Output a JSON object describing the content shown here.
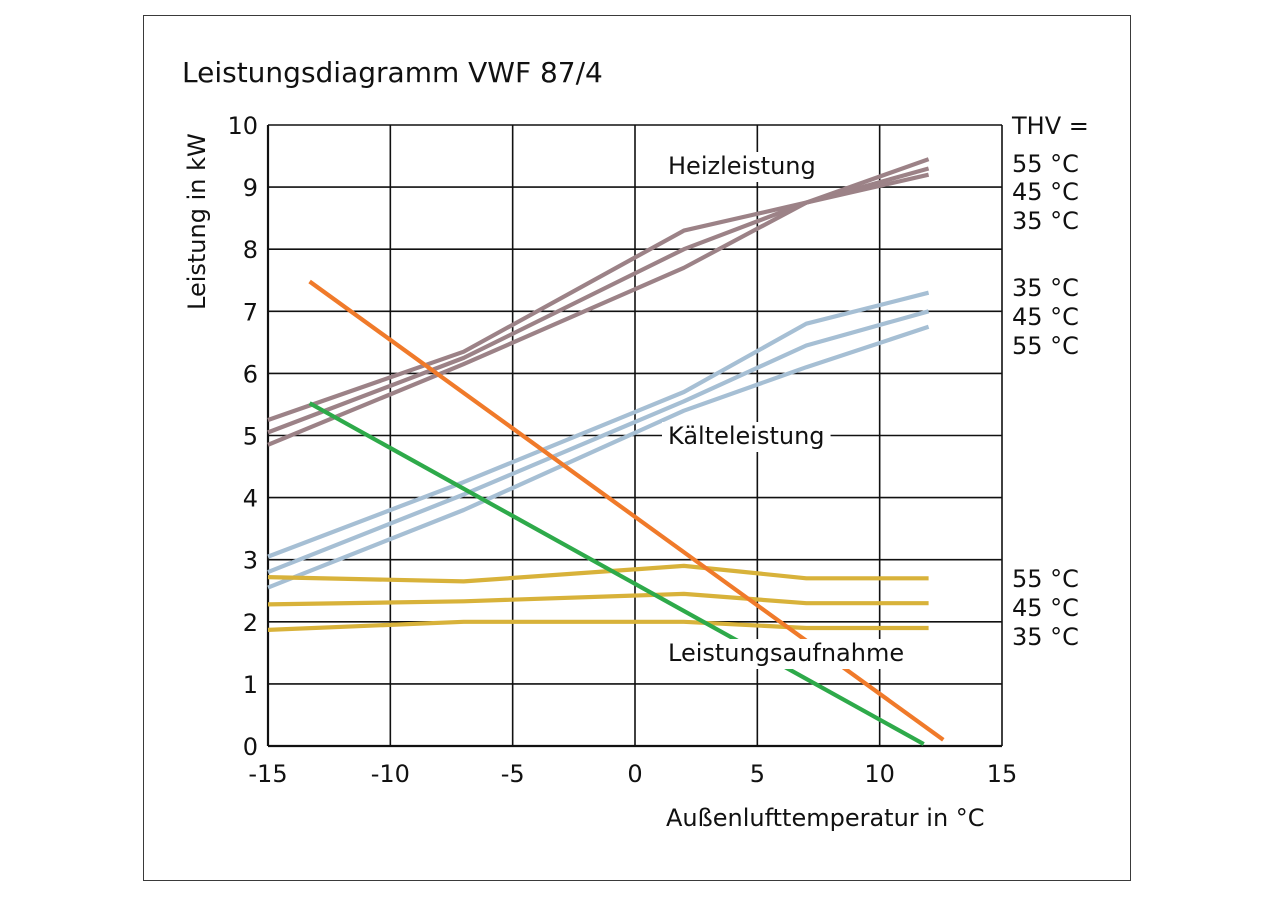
{
  "chart_data": {
    "type": "line",
    "title": "Leistungsdiagramm VWF 87/4",
    "xlabel": "Außenlufttemperatur in °C",
    "ylabel": "Leistung in kW",
    "xlim": [
      -15,
      15
    ],
    "ylim": [
      0,
      10
    ],
    "x_ticks": [
      "-15",
      "-10",
      "-5",
      "0",
      "5",
      "10",
      "15"
    ],
    "y_ticks": [
      "0",
      "1",
      "2",
      "3",
      "4",
      "5",
      "6",
      "7",
      "8",
      "9",
      "10"
    ],
    "grid": true,
    "legend_header": "THV =",
    "annotations": {
      "heat": "Heizleistung",
      "cool": "Kälteleistung",
      "power": "Leistungsaufnahme"
    },
    "right_labels": {
      "heat": [
        "55 °C",
        "45 °C",
        "35 °C"
      ],
      "cool": [
        "35 °C",
        "45 °C",
        "55 °C"
      ],
      "power": [
        "55 °C",
        "45 °C",
        "35 °C"
      ]
    },
    "colors": {
      "heat": "#9c8287",
      "cool": "#a6bfd4",
      "power": "#d8b23a",
      "orange": "#f07a2a",
      "green": "#2eaa4a"
    },
    "series": [
      {
        "group": "heat",
        "x": [
          -15,
          -7,
          2,
          7,
          12
        ],
        "y": [
          5.25,
          6.35,
          8.3,
          8.75,
          9.45
        ]
      },
      {
        "group": "heat",
        "x": [
          -15,
          -7,
          2,
          7,
          12
        ],
        "y": [
          5.05,
          6.25,
          8.0,
          8.75,
          9.3
        ]
      },
      {
        "group": "heat",
        "x": [
          -15,
          -7,
          2,
          7,
          12
        ],
        "y": [
          4.85,
          6.15,
          7.7,
          8.75,
          9.2
        ]
      },
      {
        "group": "cool",
        "x": [
          -15,
          -7,
          2,
          7,
          12
        ],
        "y": [
          3.05,
          4.25,
          5.7,
          6.8,
          7.3
        ]
      },
      {
        "group": "cool",
        "x": [
          -15,
          -7,
          2,
          7,
          12
        ],
        "y": [
          2.8,
          4.05,
          5.55,
          6.45,
          7.0
        ]
      },
      {
        "group": "cool",
        "x": [
          -15,
          -7,
          2,
          7,
          12
        ],
        "y": [
          2.55,
          3.8,
          5.4,
          6.1,
          6.75
        ]
      },
      {
        "group": "power",
        "x": [
          -15,
          -7,
          2,
          7,
          12
        ],
        "y": [
          2.72,
          2.65,
          2.9,
          2.7,
          2.7
        ]
      },
      {
        "group": "power",
        "x": [
          -15,
          -7,
          2,
          7,
          12
        ],
        "y": [
          2.28,
          2.33,
          2.45,
          2.3,
          2.3
        ]
      },
      {
        "group": "power",
        "x": [
          -15,
          -7,
          2,
          7,
          12
        ],
        "y": [
          1.87,
          2.0,
          2.0,
          1.9,
          1.9
        ]
      },
      {
        "group": "orange",
        "x": [
          -13.3,
          12.6
        ],
        "y": [
          7.48,
          0.1
        ]
      },
      {
        "group": "green",
        "x": [
          -13.3,
          11.8
        ],
        "y": [
          5.52,
          0.03
        ]
      }
    ]
  }
}
